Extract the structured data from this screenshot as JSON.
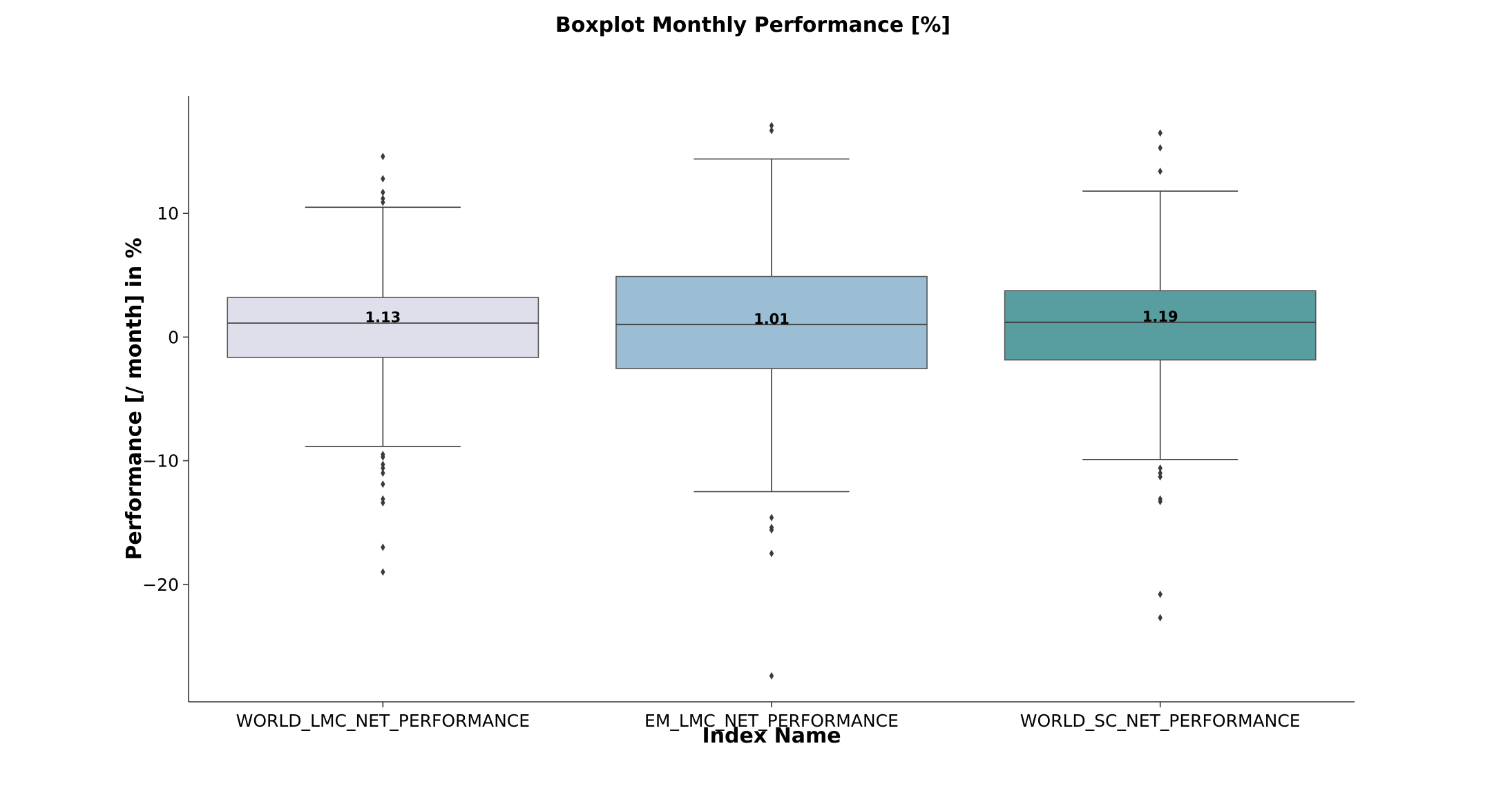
{
  "chart_data": {
    "type": "boxplot",
    "title": "Boxplot Monthly Performance [%]",
    "xlabel": "Index Name",
    "ylabel": "Performance [/ month] in %",
    "ylim": [
      -29.5,
      19.5
    ],
    "yticks": [
      10,
      0,
      -10,
      -20
    ],
    "ytick_labels": [
      "10",
      "0",
      "−10",
      "−20"
    ],
    "grid": false,
    "series": [
      {
        "category": "WORLD_LMC_NET_PERFORMANCE",
        "color": "#dfdfec",
        "q1": -1.65,
        "median": 1.13,
        "q3": 3.2,
        "whisker_low": -8.85,
        "whisker_high": 10.5,
        "median_label": "1.13",
        "outliers": [
          14.6,
          12.8,
          11.7,
          11.2,
          10.9,
          -9.5,
          -9.7,
          -10.3,
          -10.6,
          -11.0,
          -11.9,
          -13.1,
          -13.4,
          -17.0,
          -19.0
        ]
      },
      {
        "category": "EM_LMC_NET_PERFORMANCE",
        "color": "#9bbed4",
        "q1": -2.55,
        "median": 1.01,
        "q3": 4.9,
        "whisker_low": -12.5,
        "whisker_high": 14.4,
        "median_label": "1.01",
        "outliers": [
          17.1,
          16.7,
          -14.6,
          -15.4,
          -15.6,
          -17.5,
          -27.4
        ]
      },
      {
        "category": "WORLD_SC_NET_PERFORMANCE",
        "color": "#589d9f",
        "q1": -1.85,
        "median": 1.19,
        "q3": 3.75,
        "whisker_low": -9.9,
        "whisker_high": 11.8,
        "median_label": "1.19",
        "outliers": [
          16.5,
          15.3,
          13.4,
          -10.6,
          -11.0,
          -11.3,
          -13.1,
          -13.3,
          -20.8,
          -22.7
        ]
      }
    ]
  }
}
